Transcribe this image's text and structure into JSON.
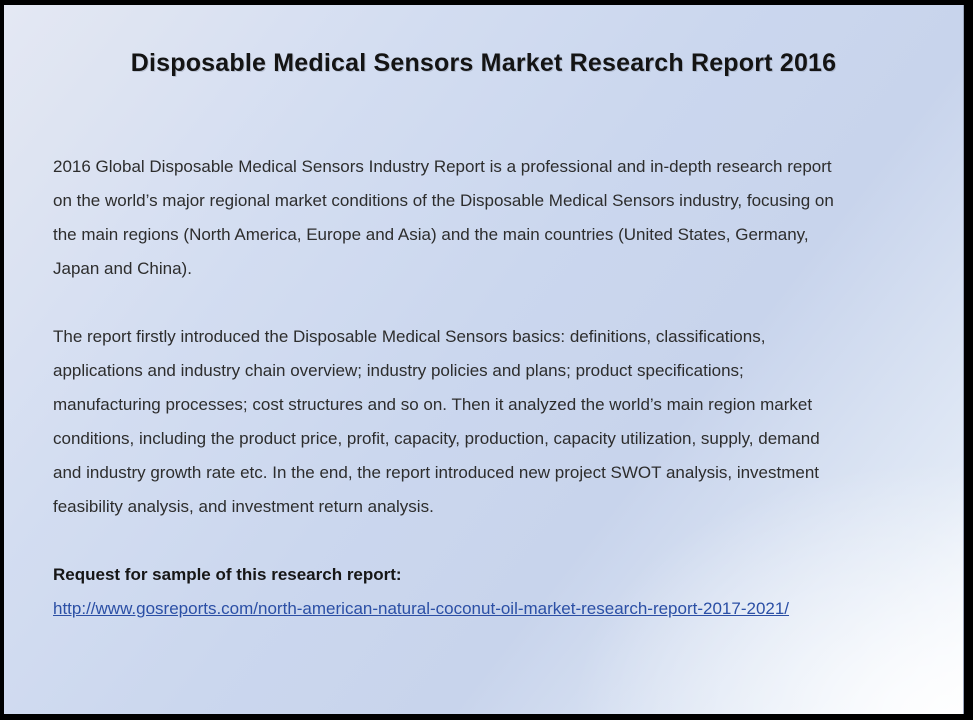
{
  "slide": {
    "title": "Disposable Medical Sensors Market Research Report 2016",
    "body": {
      "paragraph1_lines": [
        "2016 Global Disposable Medical Sensors Industry Report is a professional and in-depth research report",
        "on the world’s major regional market conditions of the Disposable Medical Sensors industry, focusing on",
        "the main regions (North America, Europe and Asia) and the main countries (United States, Germany,",
        "Japan and China)."
      ],
      "paragraph2_lines": [
        "The report firstly introduced the Disposable Medical Sensors basics: definitions, classifications,",
        "applications and industry chain overview; industry policies and plans; product specifications;",
        "manufacturing processes; cost structures and so on. Then it analyzed the world’s main region market",
        "conditions, including the product price, profit, capacity, production, capacity utilization, supply, demand",
        "and industry growth rate etc. In the end, the report introduced new project SWOT analysis, investment",
        "feasibility analysis, and investment return analysis."
      ],
      "request_label": "Request for sample of this research report:",
      "link_text": "http://www.gosreports.com/north-american-natural-coconut-oil-market-research-report-2017-2021/"
    },
    "colors": {
      "frame": "#000000",
      "background_top_left": "#e4e8f3",
      "background_center": "#c8d4ec",
      "background_bottom_right": "#f9fbfe",
      "title_text": "#141414",
      "body_text": "#2d2d2d",
      "link": "#2b4fa5"
    }
  }
}
